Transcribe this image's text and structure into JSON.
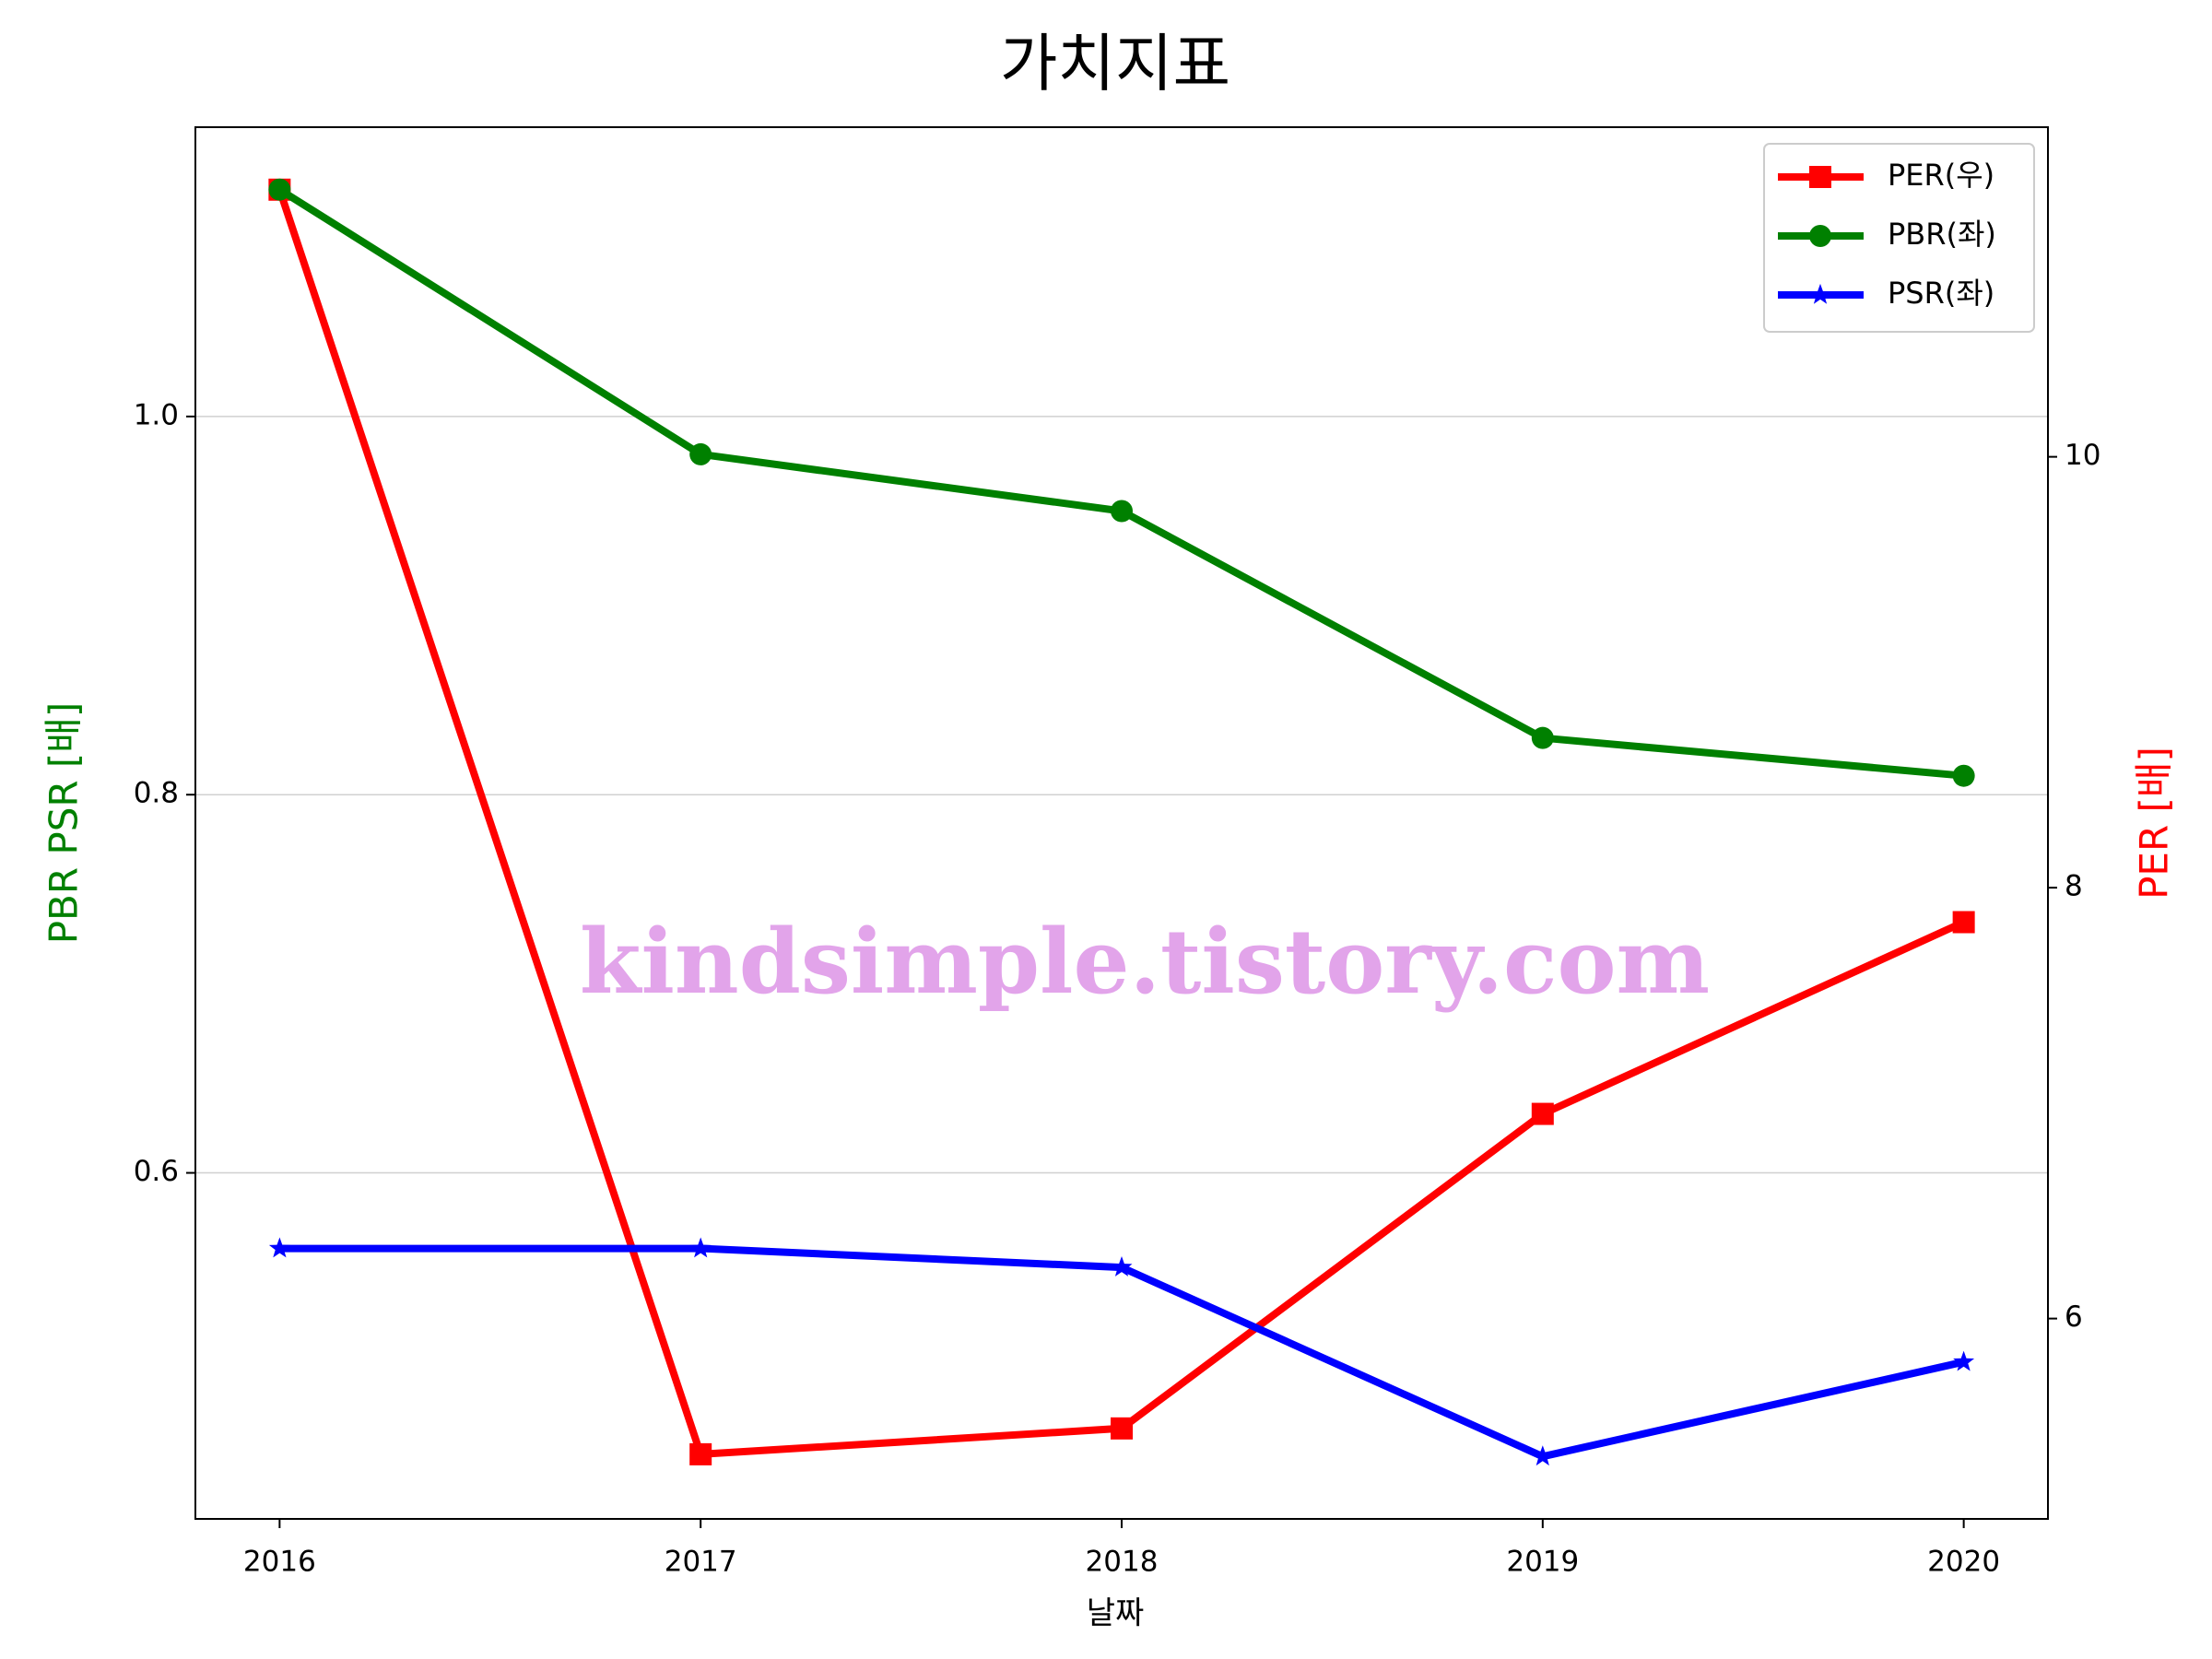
{
  "chart_data": {
    "type": "line",
    "title": "가치지표",
    "xlabel": "날짜",
    "ylabel": "PBR PSR [배]",
    "y2label": "PER [배]",
    "ylabel_color": "green",
    "y2label_color": "red",
    "x": [
      2016,
      2017,
      2018,
      2019,
      2020
    ],
    "xlim": [
      2015.8,
      2020.2
    ],
    "xticks": [
      2016,
      2017,
      2018,
      2019,
      2020
    ],
    "ylim": [
      0.417,
      1.153
    ],
    "yticks": [
      {
        "value": 0.6,
        "label": "0.6"
      },
      {
        "value": 0.8,
        "label": "0.8"
      },
      {
        "value": 1,
        "label": "1.0"
      }
    ],
    "y2lim": [
      5.07,
      11.53
    ],
    "y2ticks": [
      6,
      8,
      10
    ],
    "grid": true,
    "legend": "upper right",
    "annotation": "kindsimple.tistory.com",
    "series": [
      {
        "name": "PER(우)",
        "color": "red",
        "marker": "square",
        "axis": "y2",
        "values": [
          11.24,
          5.37,
          5.49,
          6.95,
          7.84
        ]
      },
      {
        "name": "PBR(좌)",
        "color": "green",
        "marker": "circle",
        "values": [
          1.12,
          0.98,
          0.95,
          0.83,
          0.81
        ]
      },
      {
        "name": "PSR(좌)",
        "color": "blue",
        "marker": "star",
        "values": [
          0.56,
          0.56,
          0.55,
          0.45,
          0.5
        ]
      }
    ]
  }
}
